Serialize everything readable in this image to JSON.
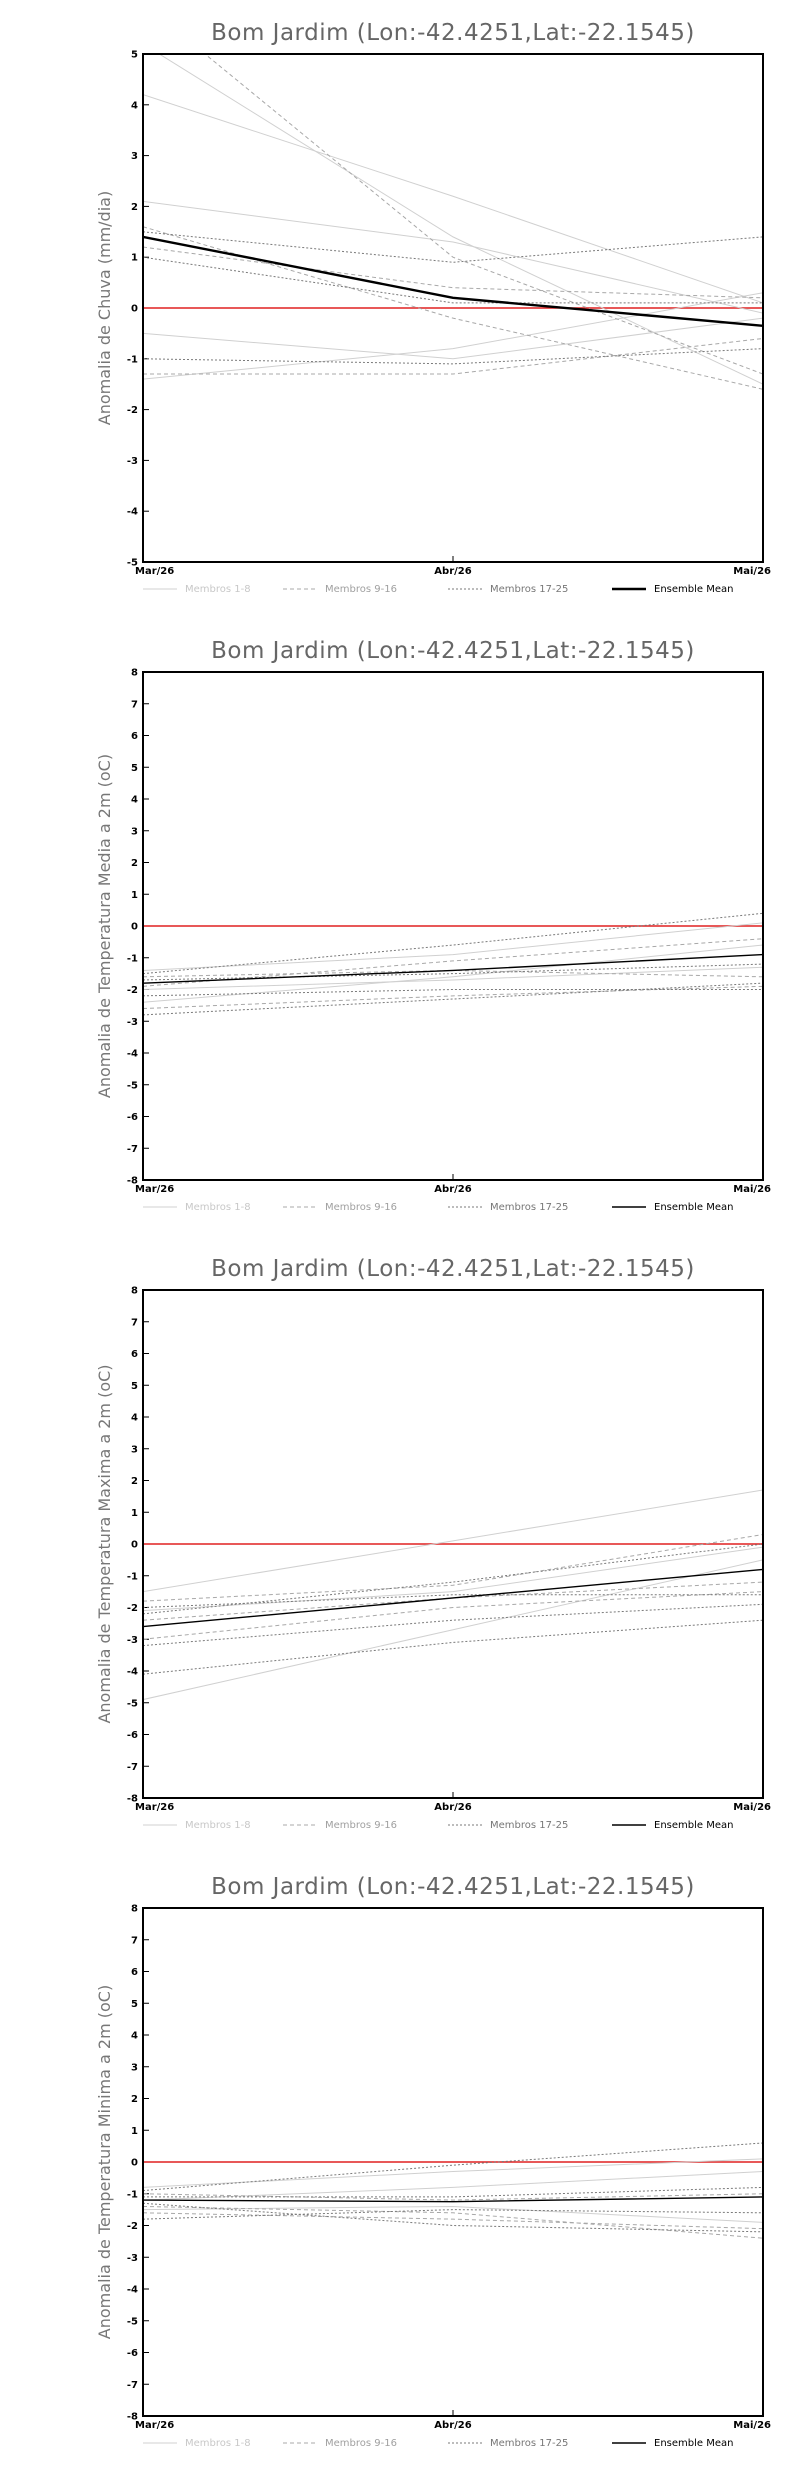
{
  "legend": {
    "entries": [
      "Membros 1-8",
      "Membros 9-16",
      "Membros 17-25",
      "Ensemble Mean"
    ],
    "colors": [
      "#d0d0d0",
      "#a8a8a8",
      "#7a7a7a",
      "#000000"
    ]
  },
  "chart_data": [
    {
      "type": "line",
      "title": "Bom Jardim (Lon:-42.4251,Lat:-22.1545)",
      "ylabel": "Anomalia de Chuva (mm/dia)",
      "categories": [
        "Mar/26",
        "Abr/26",
        "Mai/26"
      ],
      "ylim": [
        -5,
        5
      ],
      "yticks": [
        -5,
        -4,
        -3,
        -2,
        -1,
        0,
        1,
        2,
        3,
        4,
        5
      ],
      "zero_line_color": "#e02020",
      "legend_placement": "bottom",
      "members": [
        {
          "group": 0,
          "values": [
            5.2,
            1.4,
            -1.5
          ]
        },
        {
          "group": 0,
          "values": [
            4.2,
            2.2,
            0.1
          ]
        },
        {
          "group": 0,
          "values": [
            2.1,
            1.3,
            -0.1
          ]
        },
        {
          "group": 0,
          "values": [
            -0.5,
            -1.0,
            -0.2
          ]
        },
        {
          "group": 0,
          "values": [
            -1.4,
            -0.8,
            0.3
          ]
        },
        {
          "group": 1,
          "values": [
            6.0,
            1.0,
            -1.3
          ]
        },
        {
          "group": 1,
          "values": [
            1.2,
            0.4,
            0.2
          ]
        },
        {
          "group": 1,
          "values": [
            -1.3,
            -1.3,
            -0.6
          ]
        },
        {
          "group": 1,
          "values": [
            1.6,
            -0.2,
            -1.6
          ]
        },
        {
          "group": 2,
          "values": [
            1.5,
            0.9,
            1.4
          ]
        },
        {
          "group": 2,
          "values": [
            -1.0,
            -1.1,
            -0.8
          ]
        },
        {
          "group": 2,
          "values": [
            1.0,
            0.1,
            0.1
          ]
        }
      ],
      "mean": {
        "values": [
          1.4,
          0.2,
          -0.35
        ],
        "width": 2.4
      }
    },
    {
      "type": "line",
      "title": "Bom Jardim (Lon:-42.4251,Lat:-22.1545)",
      "ylabel": "Anomalia de Temperatura Media a 2m (oC)",
      "categories": [
        "Mar/26",
        "Abr/26",
        "Mai/26"
      ],
      "ylim": [
        -8,
        8
      ],
      "yticks": [
        -8,
        -7,
        -6,
        -5,
        -4,
        -3,
        -2,
        -1,
        0,
        1,
        2,
        3,
        4,
        5,
        6,
        7,
        8
      ],
      "zero_line_color": "#e02020",
      "legend_placement": "bottom",
      "members": [
        {
          "group": 0,
          "values": [
            -1.4,
            -0.9,
            0.1
          ]
        },
        {
          "group": 0,
          "values": [
            -2.4,
            -1.6,
            -0.6
          ]
        },
        {
          "group": 0,
          "values": [
            -2.0,
            -1.7,
            -1.3
          ]
        },
        {
          "group": 1,
          "values": [
            -1.6,
            -1.4,
            -1.6
          ]
        },
        {
          "group": 1,
          "values": [
            -2.6,
            -2.2,
            -1.9
          ]
        },
        {
          "group": 1,
          "values": [
            -1.9,
            -1.1,
            -0.4
          ]
        },
        {
          "group": 2,
          "values": [
            -1.5,
            -0.6,
            0.4
          ]
        },
        {
          "group": 2,
          "values": [
            -2.2,
            -2.0,
            -2.0
          ]
        },
        {
          "group": 2,
          "values": [
            -2.8,
            -2.3,
            -1.8
          ]
        },
        {
          "group": 2,
          "values": [
            -1.7,
            -1.5,
            -1.2
          ]
        }
      ],
      "mean": {
        "values": [
          -1.8,
          -1.4,
          -0.9
        ],
        "width": 1.4
      }
    },
    {
      "type": "line",
      "title": "Bom Jardim (Lon:-42.4251,Lat:-22.1545)",
      "ylabel": "Anomalia de Temperatura Maxima a 2m (oC)",
      "categories": [
        "Mar/26",
        "Abr/26",
        "Mai/26"
      ],
      "ylim": [
        -8,
        8
      ],
      "yticks": [
        -8,
        -7,
        -6,
        -5,
        -4,
        -3,
        -2,
        -1,
        0,
        1,
        2,
        3,
        4,
        5,
        6,
        7,
        8
      ],
      "zero_line_color": "#e02020",
      "legend_placement": "bottom",
      "members": [
        {
          "group": 0,
          "values": [
            -1.5,
            0.1,
            1.7
          ]
        },
        {
          "group": 0,
          "values": [
            -4.9,
            -2.7,
            -0.5
          ]
        },
        {
          "group": 0,
          "values": [
            -2.1,
            -1.5,
            -0.1
          ]
        },
        {
          "group": 1,
          "values": [
            -1.8,
            -1.3,
            0.3
          ]
        },
        {
          "group": 1,
          "values": [
            -2.4,
            -1.7,
            -1.2
          ]
        },
        {
          "group": 1,
          "values": [
            -3.0,
            -2.0,
            -1.5
          ]
        },
        {
          "group": 2,
          "values": [
            -4.1,
            -3.1,
            -2.4
          ]
        },
        {
          "group": 2,
          "values": [
            -2.2,
            -1.2,
            0.0
          ]
        },
        {
          "group": 2,
          "values": [
            -3.2,
            -2.4,
            -1.9
          ]
        },
        {
          "group": 2,
          "values": [
            -2.0,
            -1.6,
            -1.6
          ]
        }
      ],
      "mean": {
        "values": [
          -2.6,
          -1.7,
          -0.8
        ],
        "width": 1.4
      }
    },
    {
      "type": "line",
      "title": "Bom Jardim (Lon:-42.4251,Lat:-22.1545)",
      "ylabel": "Anomalia de Temperatura Minima a 2m (oC)",
      "categories": [
        "Mar/26",
        "Abr/26",
        "Mai/26"
      ],
      "ylim": [
        -8,
        8
      ],
      "yticks": [
        -8,
        -7,
        -6,
        -5,
        -4,
        -3,
        -2,
        -1,
        0,
        1,
        2,
        3,
        4,
        5,
        6,
        7,
        8
      ],
      "zero_line_color": "#e02020",
      "legend_placement": "bottom",
      "members": [
        {
          "group": 0,
          "values": [
            -1.2,
            -0.8,
            -0.3
          ]
        },
        {
          "group": 0,
          "values": [
            -1.5,
            -1.4,
            -1.9
          ]
        },
        {
          "group": 0,
          "values": [
            -0.8,
            -0.3,
            0.1
          ]
        },
        {
          "group": 1,
          "values": [
            -1.4,
            -1.6,
            -2.4
          ]
        },
        {
          "group": 1,
          "values": [
            -1.0,
            -1.2,
            -1.0
          ]
        },
        {
          "group": 1,
          "values": [
            -1.6,
            -1.8,
            -2.1
          ]
        },
        {
          "group": 2,
          "values": [
            -0.9,
            -0.1,
            0.6
          ]
        },
        {
          "group": 2,
          "values": [
            -1.3,
            -2.0,
            -2.2
          ]
        },
        {
          "group": 2,
          "values": [
            -1.8,
            -1.5,
            -1.6
          ]
        },
        {
          "group": 2,
          "values": [
            -1.1,
            -1.1,
            -0.8
          ]
        }
      ],
      "mean": {
        "values": [
          -1.2,
          -1.25,
          -1.1
        ],
        "width": 1.4
      }
    }
  ]
}
